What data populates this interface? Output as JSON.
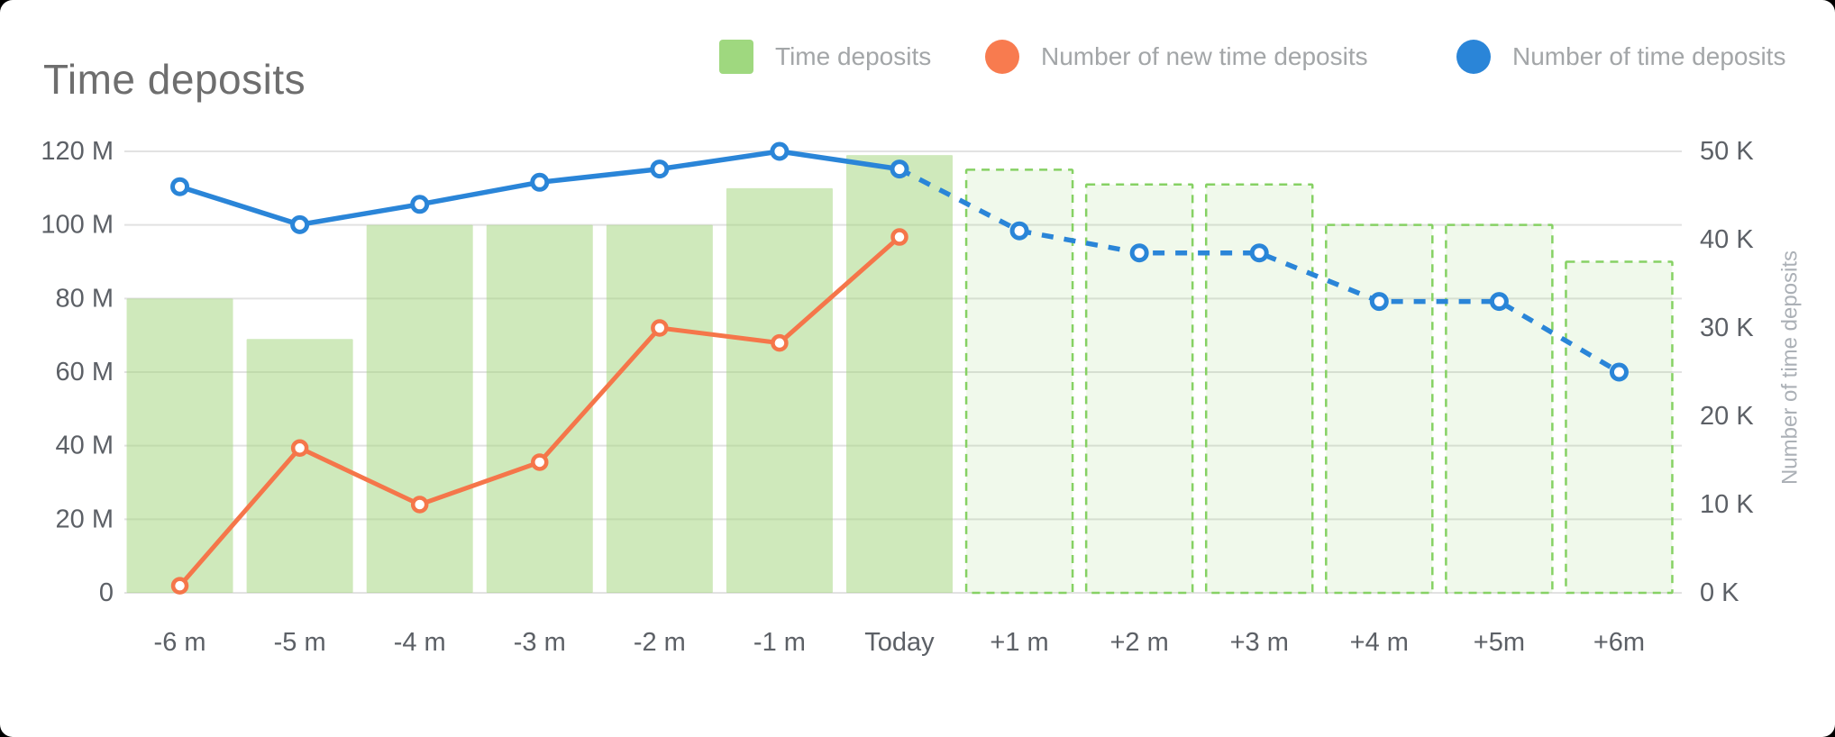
{
  "title": "Time deposits",
  "legend": {
    "items": [
      {
        "label": "Time deposits",
        "marker": "square",
        "color": "#9fd87f"
      },
      {
        "label": "Number of new time deposits",
        "marker": "circle",
        "color": "#f87b4f"
      },
      {
        "label": "Number of time deposits",
        "marker": "circle",
        "color": "#2a85d8"
      }
    ]
  },
  "chart_data": {
    "type": "combo-bar-line-dual-axis",
    "categories": [
      "-6 m",
      "-5 m",
      "-4 m",
      "-3 m",
      "-2 m",
      "-1 m",
      "Today",
      "+1 m",
      "+2 m",
      "+3 m",
      "+4 m",
      "+5m",
      "+6m"
    ],
    "forecast_start_index": 7,
    "today_index": 6,
    "series": [
      {
        "name": "Time deposits",
        "type": "bar",
        "axis": "left",
        "unit": "M",
        "values": [
          80,
          69,
          100,
          100,
          100,
          110,
          119,
          115,
          111,
          111,
          100,
          100,
          90
        ],
        "note": "bars from +1 m onward are forecast (dashed outline)"
      },
      {
        "name": "Number of new time deposits",
        "type": "line",
        "axis": "right",
        "unit": "K",
        "values": [
          0.8,
          16.4,
          10,
          14.8,
          30,
          28.3,
          40.3,
          null,
          null,
          null,
          null,
          null,
          null
        ]
      },
      {
        "name": "Number of time deposits",
        "type": "line",
        "axis": "right",
        "unit": "K",
        "dashed_from_index": 6,
        "values": [
          46,
          41.7,
          44,
          46.5,
          48,
          50,
          48,
          41,
          38.5,
          38.5,
          33,
          33,
          25
        ]
      }
    ],
    "left_axis": {
      "min": 0,
      "max": 120,
      "tick_labels": [
        "0",
        "20 M",
        "40 M",
        "60 M",
        "80 M",
        "100 M",
        "120 M"
      ]
    },
    "right_axis": {
      "min": 0,
      "max": 50,
      "tick_labels": [
        "0 K",
        "10 K",
        "20 K",
        "30 K",
        "40 K",
        "50 K"
      ],
      "title": "Number of time deposits"
    },
    "grid": "horizontal",
    "legend_position": "top-right"
  },
  "colors": {
    "bar_fill": "rgba(160,212,120,0.5)",
    "bar_forecast_fill": "rgba(141,211,103,0.13)",
    "bar_forecast_border": "#86d164",
    "line_new_deposits": "#f5764a",
    "line_deposits": "#2a85d8",
    "marker_fill": "#ffffff",
    "gridline": "#e2e2e2",
    "tick_text": "#5c6066",
    "axis_title_text": "#abb0b6"
  }
}
